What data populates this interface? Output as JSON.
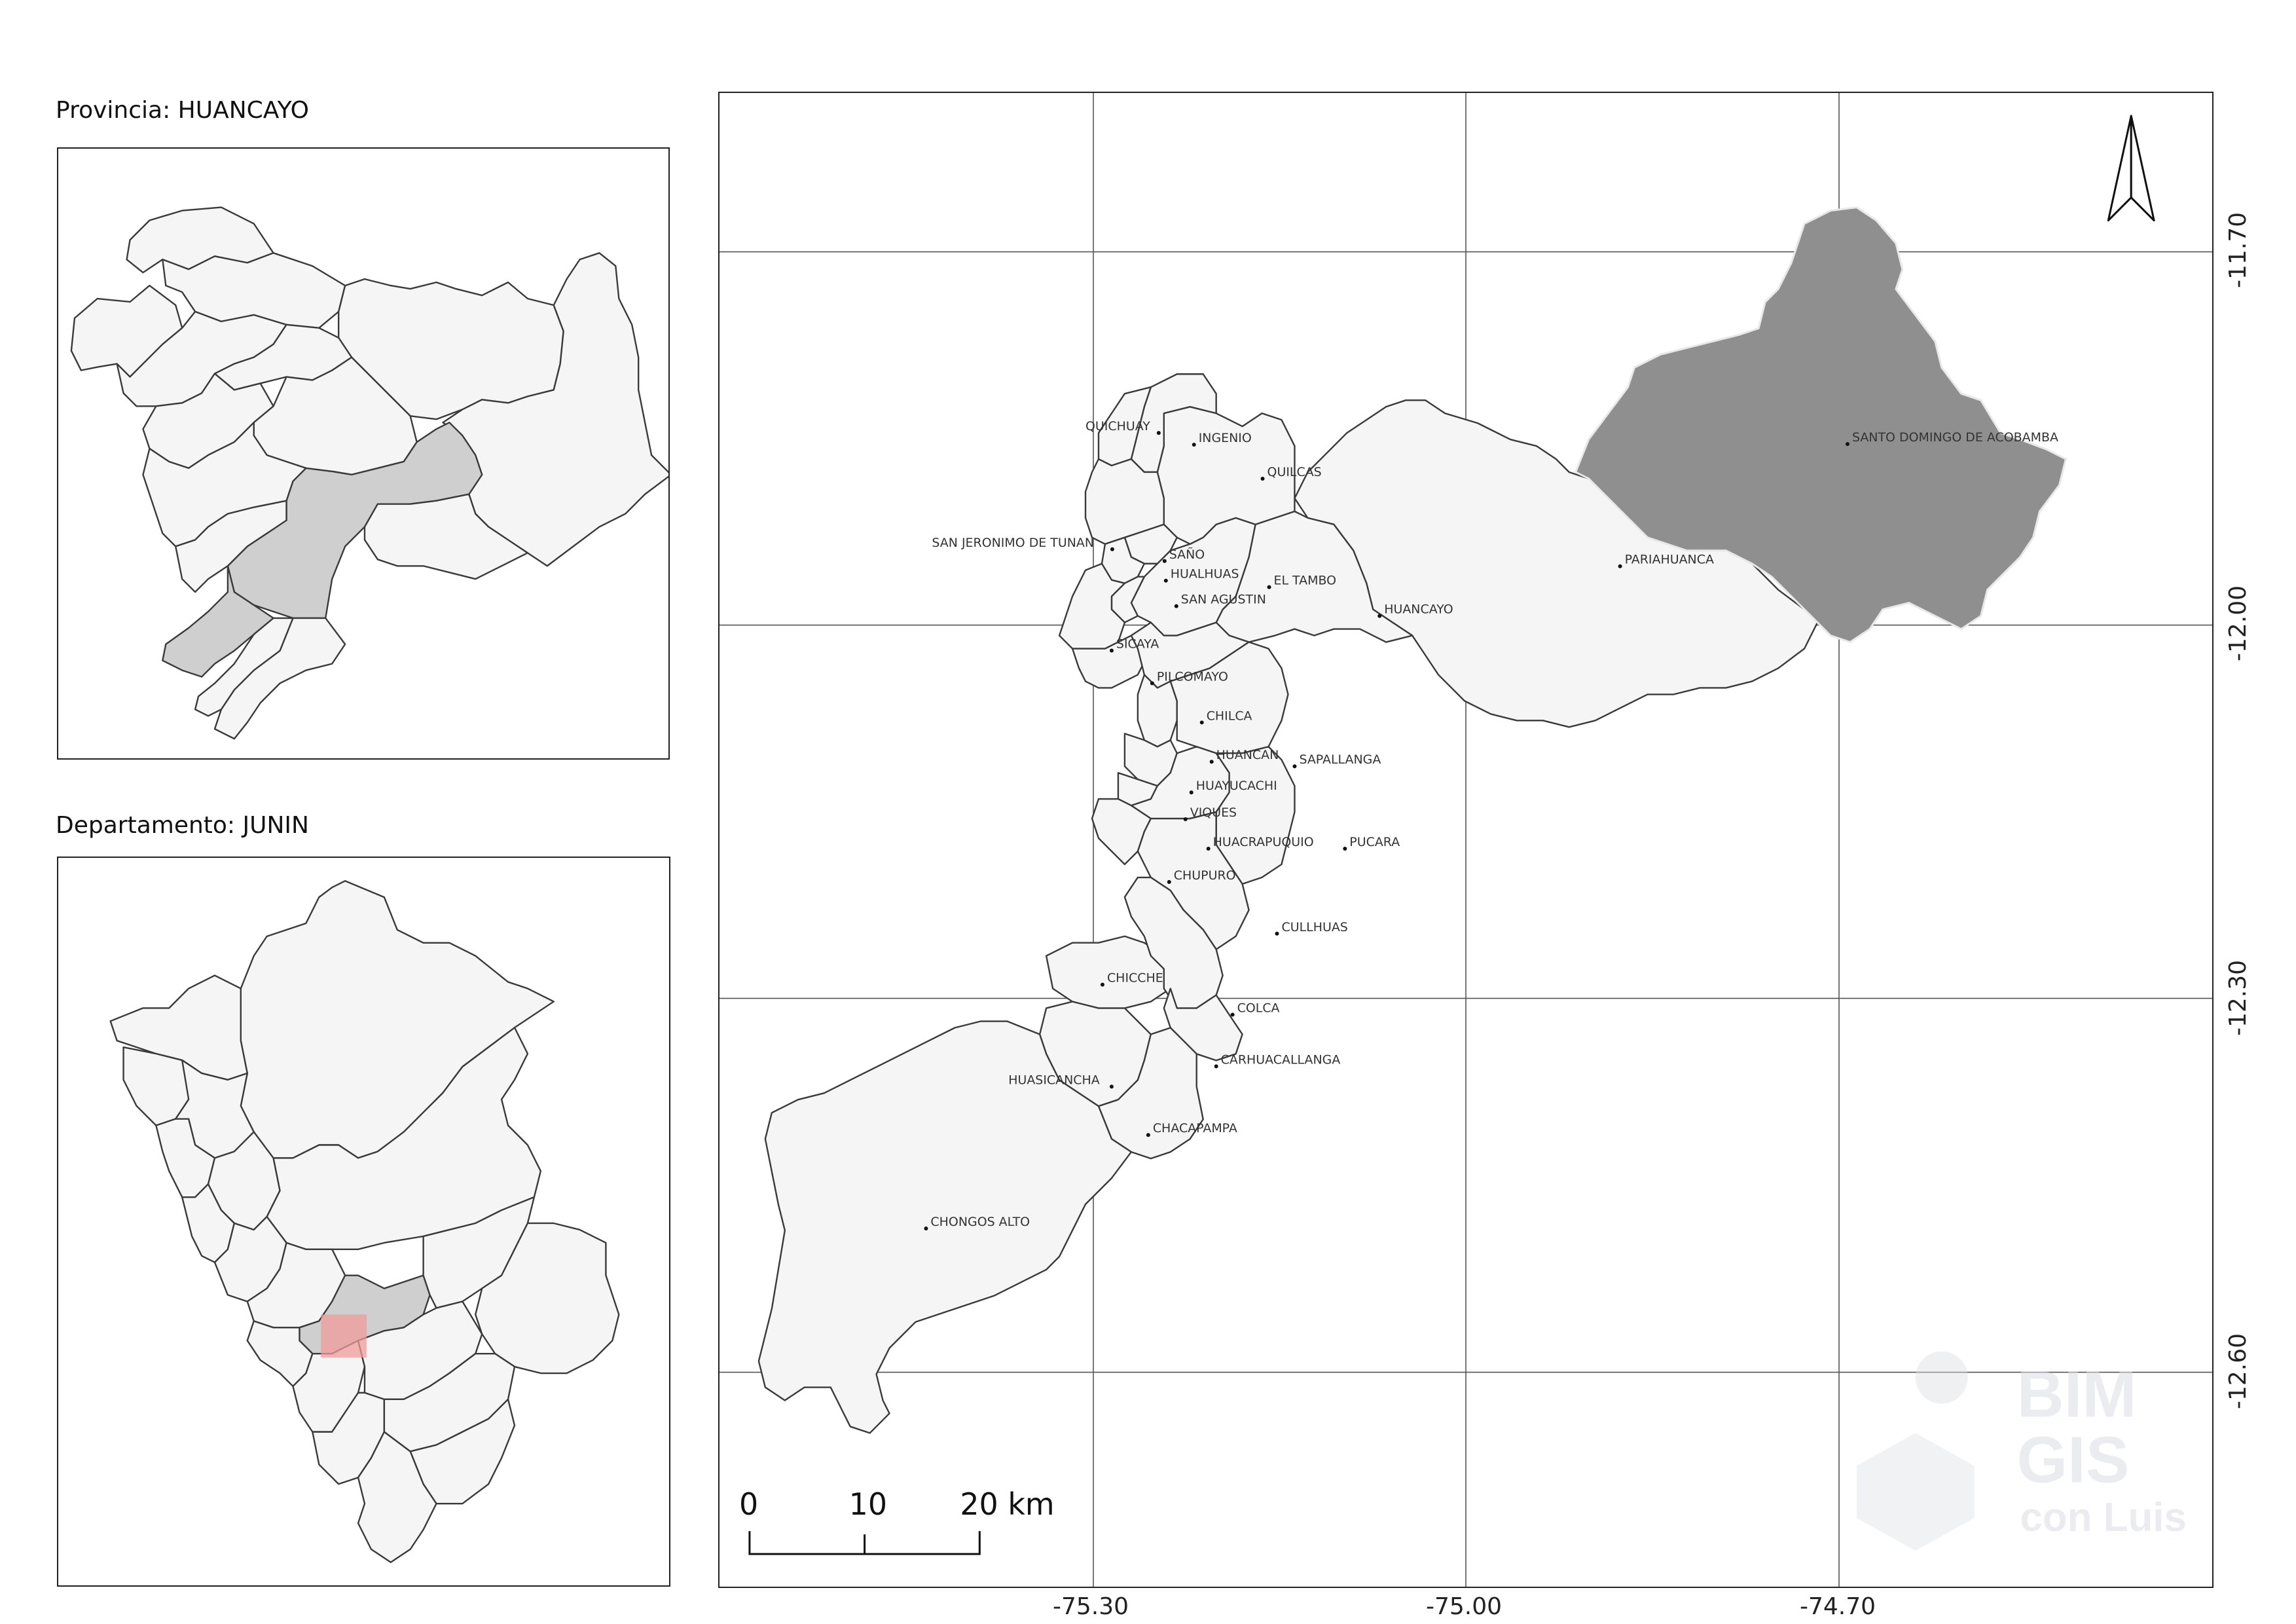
{
  "inset_province": {
    "title": "Provincia: HUANCAYO"
  },
  "inset_department": {
    "title": "Departamento: JUNIN"
  },
  "main_map": {
    "lon_ticks": [
      "-75.30",
      "-75.00",
      "-74.70"
    ],
    "lat_ticks": [
      "-11.70",
      "-12.00",
      "-12.30",
      "-12.60"
    ],
    "scale_bar": {
      "labels": [
        "0",
        "10",
        "20 km"
      ]
    },
    "north_arrow": "north-arrow-icon",
    "selected_district": "SANTO DOMINGO DE ACOBAMBA",
    "districts": [
      {
        "name": "QUICHUAY"
      },
      {
        "name": "INGENIO"
      },
      {
        "name": "QUILCAS"
      },
      {
        "name": "SAN JERONIMO DE TUNAN"
      },
      {
        "name": "SAÑO"
      },
      {
        "name": "HUALHUAS"
      },
      {
        "name": "EL TAMBO"
      },
      {
        "name": "SAN AGUSTIN"
      },
      {
        "name": "HUANCAYO"
      },
      {
        "name": "SICAYA"
      },
      {
        "name": "PILCOMAYO"
      },
      {
        "name": "PARIAHUANCA"
      },
      {
        "name": "SANTO DOMINGO DE ACOBAMBA"
      },
      {
        "name": "CHILCA"
      },
      {
        "name": "HUANCAN"
      },
      {
        "name": "SAPALLANGA"
      },
      {
        "name": "HUAYUCACHI"
      },
      {
        "name": "VIQUES"
      },
      {
        "name": "HUACRAPUQUIO"
      },
      {
        "name": "PUCARA"
      },
      {
        "name": "CHUPURO"
      },
      {
        "name": "CULLHUAS"
      },
      {
        "name": "CHICCHE"
      },
      {
        "name": "COLCA"
      },
      {
        "name": "CARHUACALLANGA"
      },
      {
        "name": "HUASICANCHA"
      },
      {
        "name": "CHACAPAMPA"
      },
      {
        "name": "CHONGOS ALTO"
      }
    ],
    "watermark": {
      "lines": [
        "BIM",
        "GIS",
        "con Luis"
      ]
    }
  },
  "colors": {
    "fill": "#f5f5f5",
    "selected_dark": "#8f8f8f",
    "selected_light": "#cfcfcf",
    "extent_box": "#f29b9b"
  }
}
